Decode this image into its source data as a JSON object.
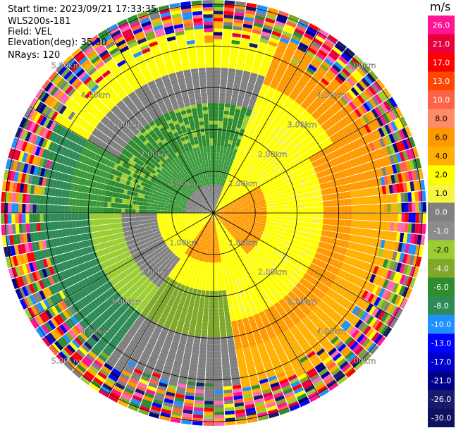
{
  "header": {
    "start_time": "Start time: 2023/09/21 17:33:35",
    "instrument": "WLS200s-181",
    "field": "Field: VEL",
    "elevation": "Elevation(deg): 35.30",
    "nrays": "NRays: 120"
  },
  "colorbar": {
    "unit": "m/s",
    "ticks": [
      "26.0",
      "21.0",
      "17.0",
      "13.0",
      "10.0",
      "8.0",
      "6.0",
      "4.0",
      "2.0",
      "1.0",
      "0.0",
      "-1.0",
      "-2.0",
      "-4.0",
      "-6.0",
      "-8.0",
      "-10.0",
      "-13.0",
      "-17.0",
      "-21.0",
      "-26.0",
      "-30.0"
    ],
    "colors": [
      "#ff1493",
      "#e8003c",
      "#ff0000",
      "#ff4500",
      "#ff6347",
      "#ff8c69",
      "#ff9900",
      "#ffb000",
      "#ffff00",
      "#f5f542",
      "#808080",
      "#8c8c8c",
      "#9acd32",
      "#7fa829",
      "#2e8b2e",
      "#2e8b57",
      "#1e90ff",
      "#0000ff",
      "#0000cd",
      "#00008b",
      "#191970",
      "#101060"
    ]
  },
  "chart_data": {
    "type": "ppi",
    "field": "VEL",
    "unit": "m/s",
    "elevation_deg": 35.3,
    "n_rays": 120,
    "ring_labels": [
      "1.00km",
      "2.00km",
      "3.00km",
      "4.00km",
      "5.00km"
    ],
    "rings_km": [
      1,
      2,
      3,
      4,
      5
    ],
    "max_range_km": 5.1,
    "velocity_regions": [
      {
        "region": "north-east outer",
        "velocity": 6.0
      },
      {
        "region": "north-east middle",
        "velocity": 2.0
      },
      {
        "region": "north-west",
        "velocity": 0.0
      },
      {
        "region": "west",
        "velocity": -4.0
      },
      {
        "region": "south-west",
        "velocity": -6.0
      },
      {
        "region": "south-east",
        "velocity": 2.0
      },
      {
        "region": "east inner",
        "velocity": 4.0
      },
      {
        "region": "outer noise ring",
        "velocity": "mixed"
      }
    ]
  }
}
